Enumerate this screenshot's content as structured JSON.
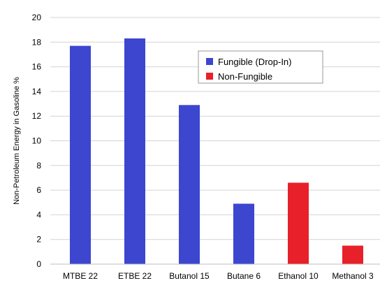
{
  "chart_data": {
    "type": "bar",
    "title": "",
    "xlabel": "",
    "ylabel": "Non-Petroleum Energy in Gasoline  %",
    "ylim": [
      0,
      20
    ],
    "yticks": [
      0,
      2,
      4,
      6,
      8,
      10,
      12,
      14,
      16,
      18,
      20
    ],
    "grid": "horizontal",
    "legend_position": "top-right",
    "categories": [
      "MTBE 22",
      "ETBE 22",
      "Butanol 15",
      "Butane 6",
      "Ethanol 10",
      "Methanol 3"
    ],
    "series": [
      {
        "name": "Fungible (Drop-In)",
        "color": "#3C46CF",
        "values": [
          17.7,
          18.3,
          12.9,
          4.9,
          null,
          null
        ]
      },
      {
        "name": "Non-Fungible",
        "color": "#E8202A",
        "values": [
          null,
          null,
          null,
          null,
          6.6,
          1.5
        ]
      }
    ]
  }
}
